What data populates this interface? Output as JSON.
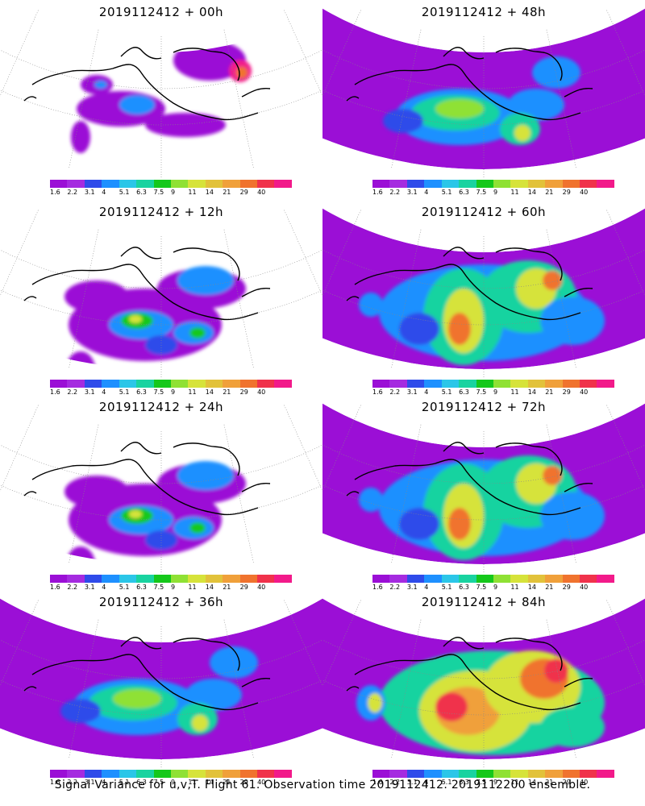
{
  "caption": "Signal Variance for u,v,T. Flight 61. Observation time 2019112412. 2019112200 ensemble.",
  "colorbar": {
    "colors": [
      "#9b0fd6",
      "#a52be0",
      "#2f4bea",
      "#1e90ff",
      "#2bc6e8",
      "#19d3a0",
      "#15c81b",
      "#8fe134",
      "#d6e33a",
      "#e2c23a",
      "#f0a03a",
      "#f0732e",
      "#f0324b",
      "#f21a8a"
    ],
    "labels": [
      "1.6",
      "2.2",
      "3.1",
      "4",
      "5.1",
      "6.3",
      "7.5",
      "9",
      "11",
      "14",
      "21",
      "29",
      "40",
      ""
    ]
  },
  "panels": [
    {
      "title": "2019112412 + 00h",
      "intensity": 0
    },
    {
      "title": "2019112412 + 48h",
      "intensity": 2
    },
    {
      "title": "2019112412 + 12h",
      "intensity": 1
    },
    {
      "title": "2019112412 + 60h",
      "intensity": 3
    },
    {
      "title": "2019112412 + 24h",
      "intensity": 1
    },
    {
      "title": "2019112412 + 72h",
      "intensity": 3
    },
    {
      "title": "2019112412 + 36h",
      "intensity": 2
    },
    {
      "title": "2019112412 + 84h",
      "intensity": 4
    }
  ]
}
